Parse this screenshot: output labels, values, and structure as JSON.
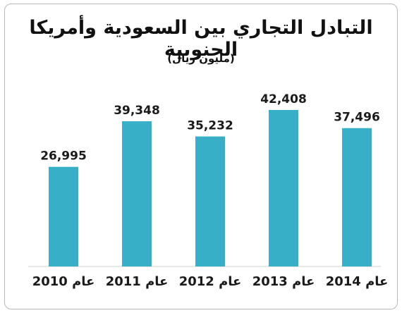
{
  "chart_data": {
    "type": "bar",
    "title": "التبادل التجاري بين السعودية وأمريكا الجنوبية",
    "subtitle": "(مليون ريال)",
    "categories": [
      "عام 2010",
      "عام 2011",
      "عام 2012",
      "عام 2013",
      "عام 2014"
    ],
    "values": [
      26995,
      39348,
      35232,
      42408,
      37496
    ],
    "value_labels": [
      "26,995",
      "39,348",
      "35,232",
      "42,408",
      "37,496"
    ],
    "ylim": [
      0,
      60000
    ],
    "grid": false,
    "bar_color": "#37b0c7"
  }
}
